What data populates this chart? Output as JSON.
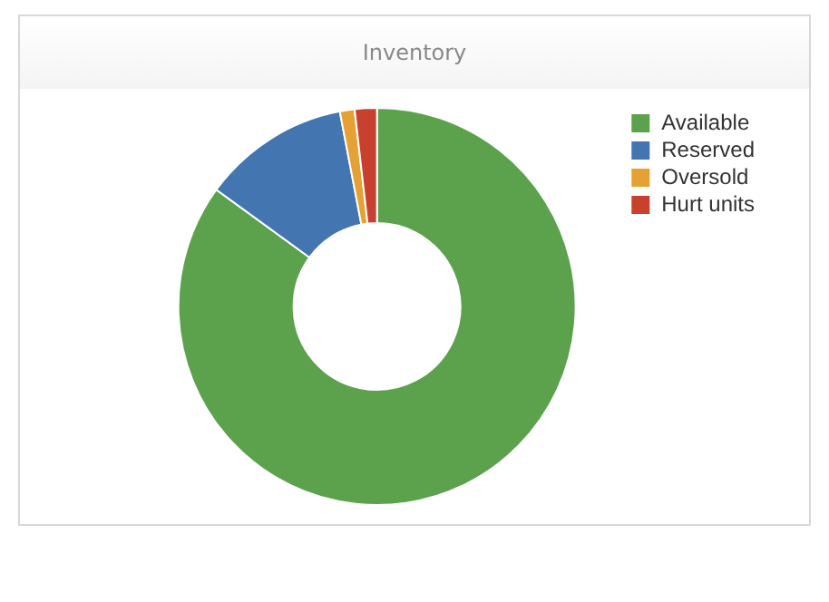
{
  "chart_data": {
    "type": "donut",
    "title": "Inventory",
    "categories": [
      "Available",
      "Reserved",
      "Oversold",
      "Hurt units"
    ],
    "values": [
      85,
      12,
      1.2,
      1.8
    ],
    "colors": [
      "#5ca24d",
      "#4375b0",
      "#e6a135",
      "#c8412f"
    ],
    "legend": "top right"
  }
}
